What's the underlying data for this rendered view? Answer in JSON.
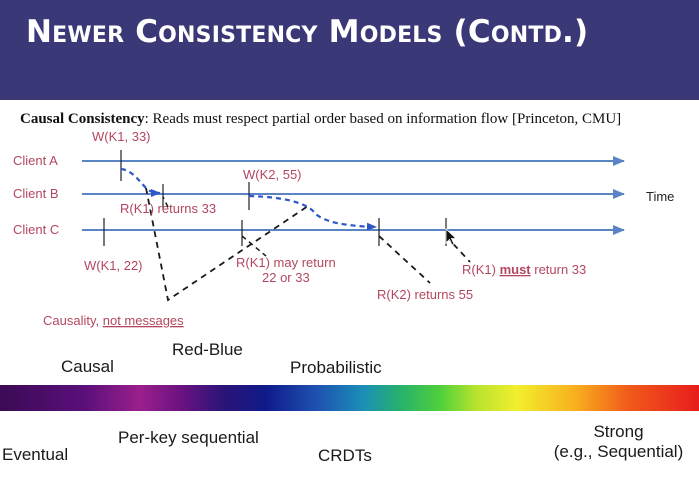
{
  "slide": {
    "title": "Newer Consistency Models (Contd.)",
    "desc_term": "Causal Consistency",
    "desc_text": ": Reads must respect partial order based on information flow [Princeton, CMU]"
  },
  "diagram": {
    "clients": [
      "Client A",
      "Client B",
      "Client C"
    ],
    "time_label": "Time",
    "events": {
      "wa": "W(K1, 33)",
      "wb": "W(K2, 55)",
      "wc": "W(K1, 22)",
      "rb": "R(K1) returns 33",
      "rc1_line1": "R(K1) may return",
      "rc1_line2": "22 or 33",
      "rc2": "R(K2) returns 55",
      "rc3_pre": "R(K1) ",
      "rc3_must": "must",
      "rc3_post": " return 33"
    },
    "causality_pre": "Causality, ",
    "causality_not": "not messages",
    "colors": {
      "arrow": "#5b84c4",
      "label": "#b3475f",
      "dashed_blue": "#2d56c9"
    }
  },
  "spectrum": {
    "upper": {
      "causal": "Causal",
      "redblue": "Red-Blue",
      "probabilistic": "Probabilistic"
    },
    "lower": {
      "eventual": "Eventual",
      "perkey": "Per-key sequential",
      "crdts": "CRDTs",
      "strong_line1": "Strong",
      "strong_line2": "(e.g., Sequential)"
    }
  }
}
